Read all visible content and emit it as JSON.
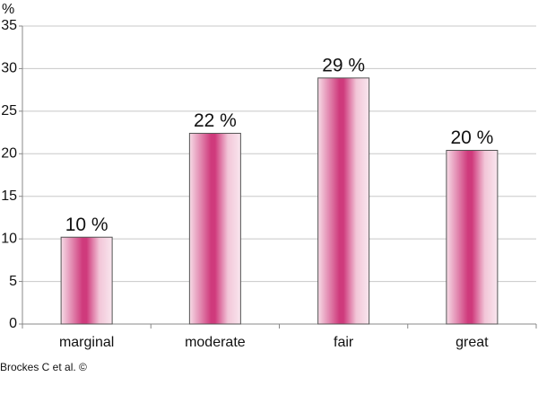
{
  "chart_data": {
    "type": "bar",
    "y_label": "%",
    "source": "Brockes C et al. ©",
    "categories": [
      "marginal",
      "moderate",
      "fair",
      "great"
    ],
    "values": [
      10.2,
      22.4,
      28.9,
      20.4
    ],
    "value_labels": [
      "10 %",
      "22 %",
      "29 %",
      "20 %"
    ],
    "color": "#cf3a7c",
    "ylim": [
      0,
      35
    ],
    "yticks": [
      0,
      5,
      10,
      15,
      20,
      25,
      30,
      35
    ],
    "grid": true
  }
}
